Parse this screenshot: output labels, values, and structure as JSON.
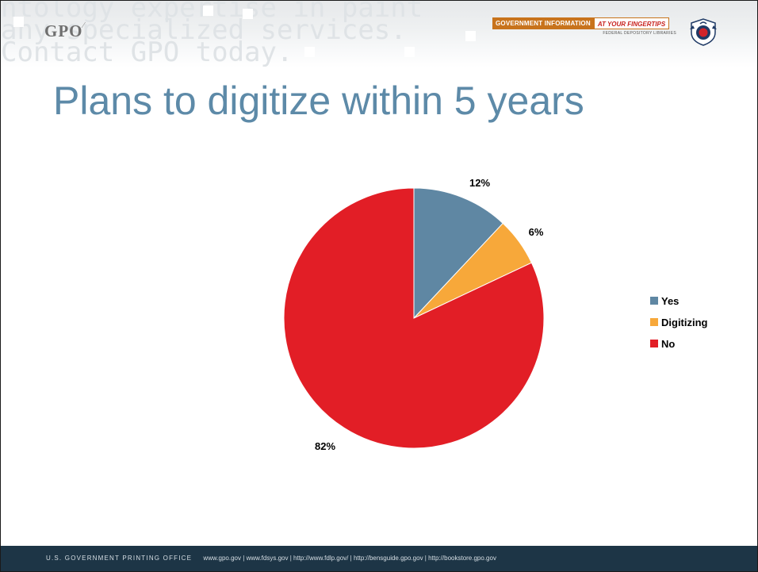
{
  "header": {
    "watermark_lines": [
      "ntology expertise in paint",
      "any specialized services.",
      "Contact GPO today."
    ],
    "logo_text": "GPO",
    "banner_left": "GOVERNMENT INFORMATION",
    "banner_right": "AT YOUR FINGERTIPS",
    "banner_sub": "FEDERAL DEPOSITORY LIBRARIES",
    "seal_icon": "eagle-seal-icon"
  },
  "slide": {
    "title": "Plans to digitize within 5 years"
  },
  "chart_data": {
    "type": "pie",
    "title": "",
    "categories": [
      "Yes",
      "Digitizing",
      "No"
    ],
    "values": [
      12,
      6,
      82
    ],
    "data_labels": [
      "12%",
      "6%",
      "82%"
    ],
    "colors": [
      "#5f87a3",
      "#f7a83a",
      "#e21e26"
    ],
    "legend": "right",
    "start_angle": "12 o'clock",
    "direction": "clockwise"
  },
  "footer": {
    "org": "U.S. GOVERNMENT PRINTING OFFICE",
    "links": [
      "www.gpo.gov",
      "www.fdsys.gov",
      "http://www.fdlp.gov/",
      "http://bensguide.gpo.gov",
      "http://bookstore.gpo.gov"
    ]
  }
}
